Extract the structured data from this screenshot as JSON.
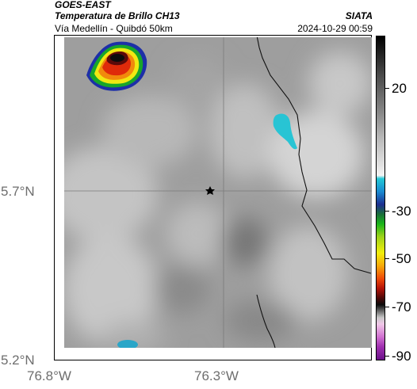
{
  "header": {
    "satellite": "GOES-EAST",
    "product": "Temperatura de Brillo CH13",
    "route": "Vía Medellín - Quibdó 50km",
    "organization": "SIATA",
    "datetime": "2024-10-29 00:59"
  },
  "map": {
    "latitude_labels": [
      "5.7°N",
      "5.2°N"
    ],
    "longitude_labels": [
      "76.8°W",
      "76.3°W"
    ],
    "gridlines": true,
    "colors": {
      "background_cloud": "#9c9c9c",
      "gridline": "#7a7a7a",
      "coastline": "#111111"
    }
  },
  "colorbar": {
    "tick_labels": [
      "20",
      "-30",
      "-50",
      "-70",
      "-90"
    ]
  }
}
